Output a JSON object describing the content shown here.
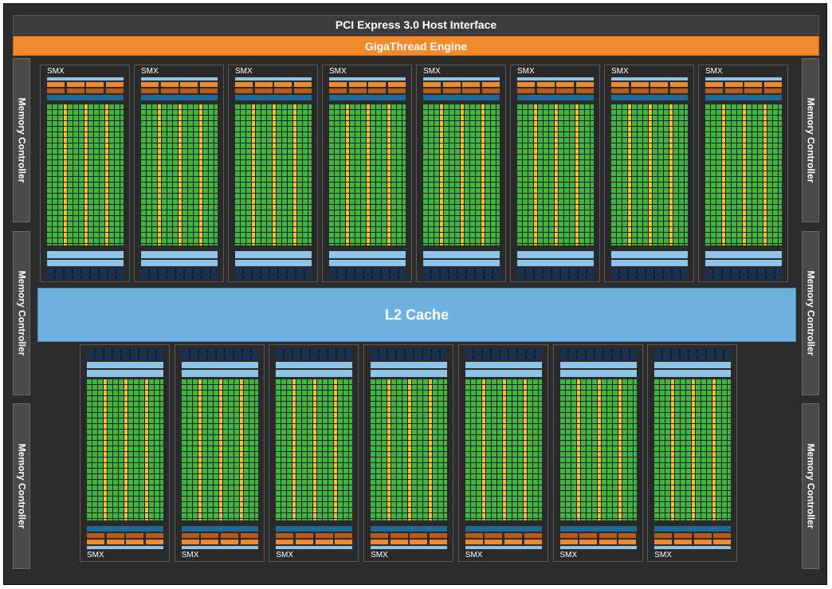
{
  "diagram": {
    "host_interface": "PCI Express 3.0 Host Interface",
    "thread_engine": "GigaThread Engine",
    "l2_cache": "L2 Cache",
    "memory_controllers": {
      "left": [
        "Memory Controller",
        "Memory Controller",
        "Memory Controller"
      ],
      "right": [
        "Memory Controller",
        "Memory Controller",
        "Memory Controller"
      ]
    },
    "smx_top": [
      "SMX",
      "SMX",
      "SMX",
      "SMX",
      "SMX",
      "SMX",
      "SMX",
      "SMX"
    ],
    "smx_bottom": [
      "SMX",
      "SMX",
      "SMX",
      "SMX",
      "SMX",
      "SMX",
      "SMX"
    ],
    "colors": {
      "background": "#2c2c2c",
      "giga_thread": "#f08a2c",
      "l2_cache": "#6fb1de",
      "core_green": "#3fb73f",
      "special_yellow": "#f2c230",
      "memory_blue": "#8ec4e8",
      "register_navy": "#15325a"
    }
  }
}
